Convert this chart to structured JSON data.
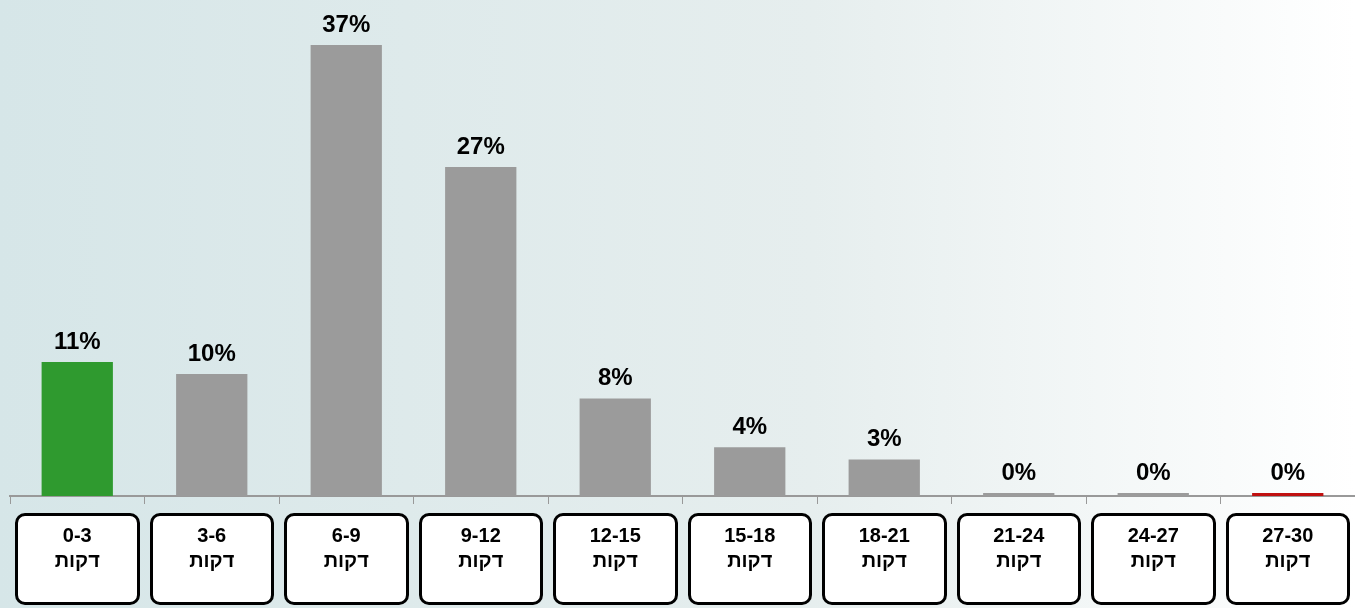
{
  "chart_data": {
    "type": "bar",
    "categories": [
      "0-3\nדקות",
      "3-6\nדקות",
      "6-9\nדקות",
      "9-12\nדקות",
      "12-15\nדקות",
      "15-18\nדקות",
      "18-21\nדקות",
      "21-24\nדקות",
      "24-27\nדקות",
      "27-30\nדקות"
    ],
    "values": [
      11,
      10,
      37,
      27,
      8,
      4,
      3,
      0,
      0,
      0
    ],
    "value_labels": [
      "11%",
      "10%",
      "37%",
      "27%",
      "8%",
      "4%",
      "3%",
      "0%",
      "0%",
      "0%"
    ],
    "colors": [
      "#2f9a2f",
      "#9b9b9b",
      "#9b9b9b",
      "#9b9b9b",
      "#9b9b9b",
      "#9b9b9b",
      "#9b9b9b",
      "#9b9b9b",
      "#9b9b9b",
      "#c01010"
    ],
    "tick_labels": "x"
  }
}
